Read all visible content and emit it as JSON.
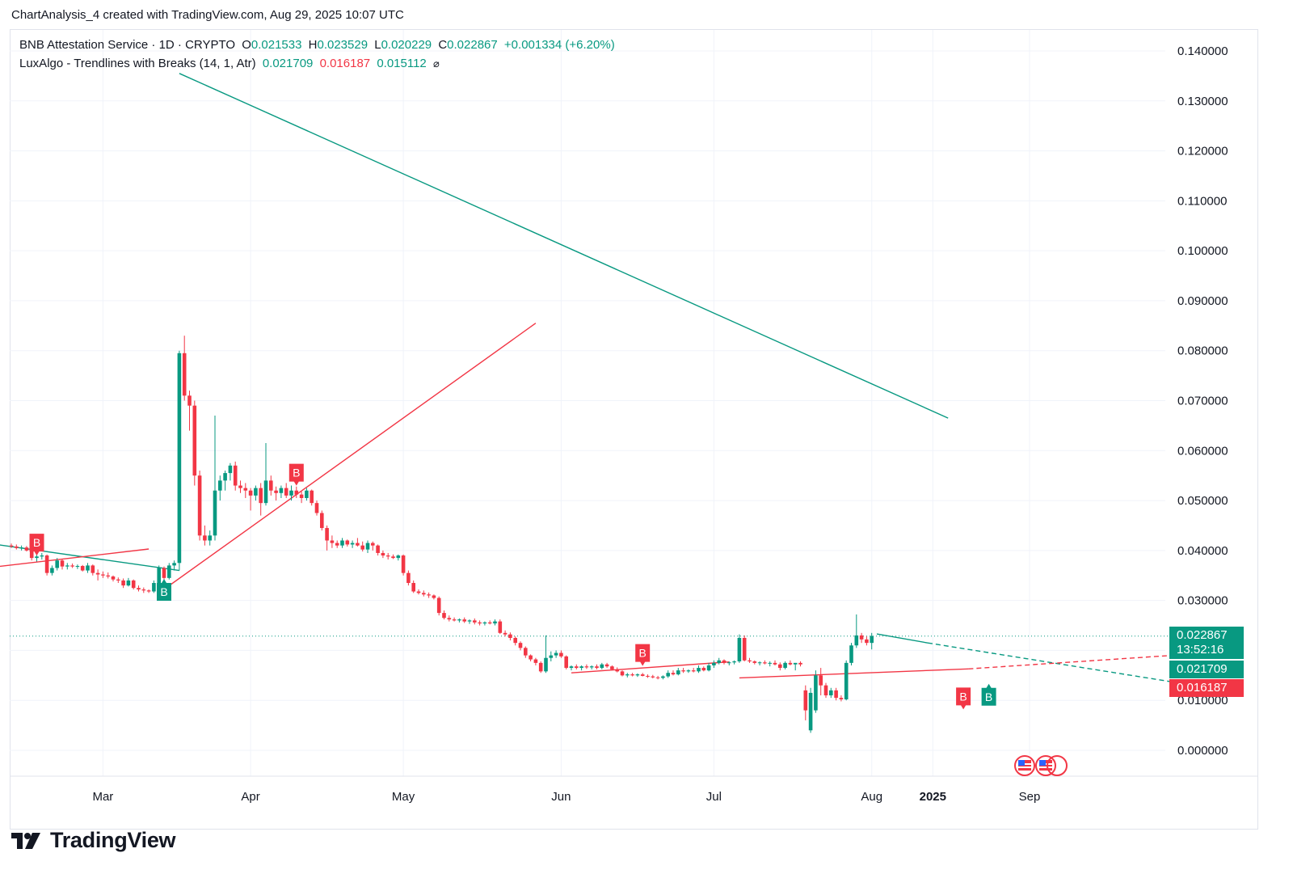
{
  "header": {
    "attribution": "ChartAnalysis_4 created with TradingView.com, Aug 29, 2025 10:07 UTC"
  },
  "legend": {
    "symbol": "BNB Attestation Service · 1D · CRYPTO",
    "o_label": "O",
    "o_value": "0.021533",
    "h_label": "H",
    "h_value": "0.023529",
    "l_label": "L",
    "l_value": "0.020229",
    "c_label": "C",
    "c_value": "0.022867",
    "change": "+0.001334 (+6.20%)",
    "indicator": "LuxAlgo - Trendlines with Breaks (14, 1, Atr)",
    "ind_v1": "0.021709",
    "ind_v2": "0.016187",
    "ind_v3": "0.015112",
    "ind_icon": "⌀"
  },
  "price_tags": {
    "last": "0.022867",
    "countdown": "13:52:16",
    "upper_trend": "0.021709",
    "lower_trend": "0.016187"
  },
  "brand": {
    "name": "TradingView"
  },
  "colors": {
    "up": "#089981",
    "down": "#f23645",
    "grid": "#f0f3fa",
    "axis_text": "#131722"
  },
  "chart_data": {
    "type": "candlestick",
    "title": "BNB Attestation Service · 1D · CRYPTO",
    "ylim": [
      -0.003,
      0.142
    ],
    "y_ticks": [
      "0.000000",
      "0.010000",
      "0.020000",
      "0.030000",
      "0.040000",
      "0.050000",
      "0.060000",
      "0.070000",
      "0.080000",
      "0.090000",
      "0.100000",
      "0.110000",
      "0.120000",
      "0.130000",
      "0.140000"
    ],
    "x_ticks": [
      {
        "label": "Mar",
        "day": 18,
        "bold": false
      },
      {
        "label": "Apr",
        "day": 47,
        "bold": false
      },
      {
        "label": "May",
        "day": 77,
        "bold": false
      },
      {
        "label": "Jun",
        "day": 108,
        "bold": false
      },
      {
        "label": "Jul",
        "day": 138,
        "bold": false
      },
      {
        "label": "Aug",
        "day": 169,
        "bold": false
      },
      {
        "label": "2025",
        "day": 181,
        "bold": true
      },
      {
        "label": "Sep",
        "day": 200,
        "bold": false
      }
    ],
    "candles": [
      [
        0.041,
        0.0414,
        0.0405,
        0.0408
      ],
      [
        0.0408,
        0.0412,
        0.0402,
        0.0405
      ],
      [
        0.0405,
        0.041,
        0.04,
        0.0406
      ],
      [
        0.0406,
        0.0409,
        0.0398,
        0.04
      ],
      [
        0.04,
        0.0402,
        0.038,
        0.0385
      ],
      [
        0.0385,
        0.0392,
        0.0378,
        0.0388
      ],
      [
        0.0388,
        0.0395,
        0.0382,
        0.039
      ],
      [
        0.039,
        0.0392,
        0.035,
        0.0355
      ],
      [
        0.0355,
        0.037,
        0.035,
        0.0365
      ],
      [
        0.0365,
        0.0385,
        0.036,
        0.038
      ],
      [
        0.038,
        0.0382,
        0.0362,
        0.0368
      ],
      [
        0.0368,
        0.0375,
        0.0362,
        0.037
      ],
      [
        0.037,
        0.0374,
        0.0365,
        0.0368
      ],
      [
        0.0368,
        0.0372,
        0.0363,
        0.0369
      ],
      [
        0.0369,
        0.0371,
        0.0358,
        0.036
      ],
      [
        0.036,
        0.0375,
        0.0355,
        0.037
      ],
      [
        0.037,
        0.0372,
        0.035,
        0.0355
      ],
      [
        0.0355,
        0.0362,
        0.034,
        0.0352
      ],
      [
        0.0352,
        0.0358,
        0.0345,
        0.035
      ],
      [
        0.035,
        0.0356,
        0.0344,
        0.0348
      ],
      [
        0.0348,
        0.035,
        0.0338,
        0.0342
      ],
      [
        0.0342,
        0.0346,
        0.0335,
        0.034
      ],
      [
        0.034,
        0.0344,
        0.0325,
        0.033
      ],
      [
        0.033,
        0.0345,
        0.0328,
        0.034
      ],
      [
        0.034,
        0.0342,
        0.0322,
        0.0325
      ],
      [
        0.0325,
        0.033,
        0.0318,
        0.0322
      ],
      [
        0.0322,
        0.0326,
        0.0315,
        0.032
      ],
      [
        0.032,
        0.0322,
        0.0315,
        0.0318
      ],
      [
        0.0318,
        0.034,
        0.0315,
        0.0335
      ],
      [
        0.0335,
        0.037,
        0.033,
        0.0365
      ],
      [
        0.0365,
        0.0368,
        0.034,
        0.0345
      ],
      [
        0.0345,
        0.0375,
        0.0342,
        0.037
      ],
      [
        0.037,
        0.038,
        0.036,
        0.0375
      ],
      [
        0.0375,
        0.08,
        0.036,
        0.0795
      ],
      [
        0.0795,
        0.083,
        0.07,
        0.071
      ],
      [
        0.071,
        0.072,
        0.064,
        0.069
      ],
      [
        0.069,
        0.07,
        0.053,
        0.055
      ],
      [
        0.055,
        0.056,
        0.042,
        0.043
      ],
      [
        0.043,
        0.045,
        0.041,
        0.042
      ],
      [
        0.042,
        0.044,
        0.041,
        0.043
      ],
      [
        0.043,
        0.067,
        0.042,
        0.052
      ],
      [
        0.052,
        0.055,
        0.05,
        0.054
      ],
      [
        0.054,
        0.056,
        0.052,
        0.0555
      ],
      [
        0.0555,
        0.0575,
        0.054,
        0.057
      ],
      [
        0.057,
        0.0578,
        0.052,
        0.053
      ],
      [
        0.053,
        0.054,
        0.0515,
        0.0525
      ],
      [
        0.0525,
        0.0535,
        0.0505,
        0.052
      ],
      [
        0.052,
        0.0525,
        0.048,
        0.051
      ],
      [
        0.051,
        0.053,
        0.05,
        0.0525
      ],
      [
        0.0525,
        0.0535,
        0.047,
        0.0495
      ],
      [
        0.0495,
        0.0615,
        0.049,
        0.054
      ],
      [
        0.054,
        0.055,
        0.051,
        0.052
      ],
      [
        0.052,
        0.0528,
        0.05,
        0.0515
      ],
      [
        0.0515,
        0.053,
        0.0505,
        0.0525
      ],
      [
        0.0525,
        0.0535,
        0.0505,
        0.051
      ],
      [
        0.051,
        0.053,
        0.05,
        0.052
      ],
      [
        0.052,
        0.0528,
        0.0505,
        0.0512
      ],
      [
        0.0512,
        0.0518,
        0.0495,
        0.0505
      ],
      [
        0.0505,
        0.0525,
        0.05,
        0.052
      ],
      [
        0.052,
        0.0522,
        0.049,
        0.0495
      ],
      [
        0.0495,
        0.05,
        0.047,
        0.0475
      ],
      [
        0.0475,
        0.048,
        0.044,
        0.0445
      ],
      [
        0.0445,
        0.045,
        0.04,
        0.042
      ],
      [
        0.042,
        0.043,
        0.0405,
        0.0415
      ],
      [
        0.0415,
        0.042,
        0.0405,
        0.041
      ],
      [
        0.041,
        0.0425,
        0.0405,
        0.042
      ],
      [
        0.042,
        0.0422,
        0.0408,
        0.0412
      ],
      [
        0.0412,
        0.042,
        0.0405,
        0.0415
      ],
      [
        0.0415,
        0.0425,
        0.0408,
        0.041
      ],
      [
        0.041,
        0.0418,
        0.0398,
        0.0402
      ],
      [
        0.0402,
        0.042,
        0.0395,
        0.0415
      ],
      [
        0.0415,
        0.0418,
        0.04,
        0.041
      ],
      [
        0.041,
        0.0412,
        0.039,
        0.0395
      ],
      [
        0.0395,
        0.04,
        0.0385,
        0.039
      ],
      [
        0.039,
        0.0395,
        0.0382,
        0.0388
      ],
      [
        0.0388,
        0.0392,
        0.0383,
        0.0385
      ],
      [
        0.0385,
        0.0392,
        0.038,
        0.039
      ],
      [
        0.039,
        0.0392,
        0.035,
        0.0355
      ],
      [
        0.0355,
        0.036,
        0.033,
        0.0335
      ],
      [
        0.0335,
        0.034,
        0.0315,
        0.0318
      ],
      [
        0.0318,
        0.0322,
        0.0312,
        0.0315
      ],
      [
        0.0315,
        0.032,
        0.0308,
        0.0312
      ],
      [
        0.0312,
        0.0316,
        0.0305,
        0.031
      ],
      [
        0.031,
        0.0312,
        0.0302,
        0.0305
      ],
      [
        0.0305,
        0.0308,
        0.027,
        0.0275
      ],
      [
        0.0275,
        0.028,
        0.0262,
        0.0265
      ],
      [
        0.0265,
        0.027,
        0.0258,
        0.0262
      ],
      [
        0.0262,
        0.0266,
        0.0258,
        0.026
      ],
      [
        0.026,
        0.0264,
        0.0256,
        0.0262
      ],
      [
        0.0262,
        0.0266,
        0.0255,
        0.0258
      ],
      [
        0.0258,
        0.0262,
        0.0253,
        0.026
      ],
      [
        0.026,
        0.0264,
        0.0252,
        0.0256
      ],
      [
        0.0256,
        0.026,
        0.025,
        0.0254
      ],
      [
        0.0254,
        0.0258,
        0.025,
        0.0256
      ],
      [
        0.0256,
        0.026,
        0.0252,
        0.0254
      ],
      [
        0.0254,
        0.0262,
        0.025,
        0.0258
      ],
      [
        0.0258,
        0.0262,
        0.0233,
        0.0235
      ],
      [
        0.0235,
        0.024,
        0.0228,
        0.0232
      ],
      [
        0.0232,
        0.0236,
        0.022,
        0.0225
      ],
      [
        0.0225,
        0.0228,
        0.021,
        0.0215
      ],
      [
        0.0215,
        0.0218,
        0.02,
        0.0205
      ],
      [
        0.0205,
        0.0208,
        0.0185,
        0.019
      ],
      [
        0.019,
        0.0192,
        0.0178,
        0.0182
      ],
      [
        0.0182,
        0.0185,
        0.017,
        0.0175
      ],
      [
        0.0175,
        0.0178,
        0.0155,
        0.0158
      ],
      [
        0.0158,
        0.023,
        0.0155,
        0.0185
      ],
      [
        0.0185,
        0.0198,
        0.0178,
        0.019
      ],
      [
        0.019,
        0.02,
        0.0185,
        0.0195
      ],
      [
        0.0195,
        0.02,
        0.0185,
        0.0188
      ],
      [
        0.0188,
        0.019,
        0.0162,
        0.0165
      ],
      [
        0.0165,
        0.017,
        0.016,
        0.0168
      ],
      [
        0.0168,
        0.0172,
        0.0162,
        0.0165
      ],
      [
        0.0165,
        0.017,
        0.016,
        0.0168
      ],
      [
        0.0168,
        0.0172,
        0.0163,
        0.0166
      ],
      [
        0.0166,
        0.017,
        0.0162,
        0.0168
      ],
      [
        0.0168,
        0.0172,
        0.0162,
        0.0165
      ],
      [
        0.0165,
        0.0175,
        0.0162,
        0.0172
      ],
      [
        0.0172,
        0.0175,
        0.0165,
        0.0168
      ],
      [
        0.0168,
        0.017,
        0.016,
        0.0162
      ],
      [
        0.0162,
        0.0166,
        0.0156,
        0.0158
      ],
      [
        0.0158,
        0.016,
        0.0148,
        0.015
      ],
      [
        0.015,
        0.0155,
        0.0146,
        0.0152
      ],
      [
        0.0152,
        0.0155,
        0.0148,
        0.015
      ],
      [
        0.015,
        0.0154,
        0.0147,
        0.0152
      ],
      [
        0.0152,
        0.0155,
        0.0148,
        0.0149
      ],
      [
        0.0149,
        0.0152,
        0.0145,
        0.0148
      ],
      [
        0.0148,
        0.0151,
        0.0144,
        0.0146
      ],
      [
        0.0146,
        0.0149,
        0.0142,
        0.0145
      ],
      [
        0.0145,
        0.015,
        0.0142,
        0.0148
      ],
      [
        0.0148,
        0.016,
        0.0145,
        0.0155
      ],
      [
        0.0155,
        0.016,
        0.015,
        0.0152
      ],
      [
        0.0152,
        0.0165,
        0.015,
        0.016
      ],
      [
        0.016,
        0.0165,
        0.0155,
        0.0158
      ],
      [
        0.0158,
        0.0162,
        0.0155,
        0.016
      ],
      [
        0.016,
        0.0165,
        0.0156,
        0.0158
      ],
      [
        0.0158,
        0.017,
        0.0155,
        0.0165
      ],
      [
        0.0165,
        0.0168,
        0.0158,
        0.016
      ],
      [
        0.016,
        0.0175,
        0.0158,
        0.017
      ],
      [
        0.017,
        0.018,
        0.0165,
        0.0175
      ],
      [
        0.0175,
        0.0185,
        0.0172,
        0.018
      ],
      [
        0.018,
        0.0182,
        0.0172,
        0.0175
      ],
      [
        0.0175,
        0.0178,
        0.017,
        0.0176
      ],
      [
        0.0176,
        0.018,
        0.0172,
        0.0178
      ],
      [
        0.0178,
        0.0232,
        0.0175,
        0.0225
      ],
      [
        0.0225,
        0.023,
        0.0178,
        0.018
      ],
      [
        0.018,
        0.0185,
        0.0175,
        0.0178
      ],
      [
        0.0178,
        0.018,
        0.0172,
        0.0175
      ],
      [
        0.0175,
        0.0178,
        0.017,
        0.0176
      ],
      [
        0.0176,
        0.018,
        0.0172,
        0.0174
      ],
      [
        0.0174,
        0.0178,
        0.0168,
        0.0175
      ],
      [
        0.0175,
        0.018,
        0.017,
        0.0172
      ],
      [
        0.0172,
        0.0176,
        0.016,
        0.0165
      ],
      [
        0.0165,
        0.0178,
        0.0162,
        0.0175
      ],
      [
        0.0175,
        0.018,
        0.017,
        0.0172
      ],
      [
        0.0172,
        0.0175,
        0.016,
        0.0175
      ],
      [
        0.0175,
        0.0178,
        0.0168,
        0.0172
      ],
      [
        0.012,
        0.013,
        0.006,
        0.008
      ],
      [
        0.004,
        0.0125,
        0.0035,
        0.0115
      ],
      [
        0.008,
        0.016,
        0.0075,
        0.015
      ],
      [
        0.015,
        0.0165,
        0.011,
        0.013
      ],
      [
        0.013,
        0.0135,
        0.0105,
        0.011
      ],
      [
        0.011,
        0.0125,
        0.0105,
        0.012
      ],
      [
        0.012,
        0.0125,
        0.01,
        0.0105
      ],
      [
        0.0105,
        0.011,
        0.0098,
        0.0102
      ],
      [
        0.0102,
        0.018,
        0.01,
        0.0175
      ],
      [
        0.0175,
        0.0215,
        0.017,
        0.021
      ],
      [
        0.021,
        0.0272,
        0.0205,
        0.023
      ],
      [
        0.023,
        0.0235,
        0.0215,
        0.0222
      ],
      [
        0.0222,
        0.0228,
        0.021,
        0.0215
      ],
      [
        0.0215,
        0.0235,
        0.0202,
        0.0229
      ]
    ],
    "trendlines": [
      {
        "name": "downtrend",
        "color": "down_green",
        "points": [
          [
            33,
            0.1355
          ],
          [
            184,
            0.0665
          ]
        ]
      },
      {
        "name": "rising support",
        "color": "red",
        "points": [
          [
            29,
            0.0315
          ],
          [
            103,
            0.0855
          ]
        ]
      },
      {
        "name": "early resistance",
        "color": "green",
        "points": [
          [
            -5,
            0.0415
          ],
          [
            33,
            0.036
          ]
        ]
      },
      {
        "name": "early support",
        "color": "red",
        "points": [
          [
            -5,
            0.0365
          ],
          [
            27,
            0.0403
          ]
        ]
      },
      {
        "name": "june support",
        "color": "red",
        "points": [
          [
            110,
            0.0155
          ],
          [
            141,
            0.0177
          ]
        ]
      },
      {
        "name": "july support",
        "color": "red",
        "points": [
          [
            143,
            0.0145
          ],
          [
            188,
            0.0163
          ]
        ]
      },
      {
        "name": "aug resistance",
        "color": "green",
        "points": [
          [
            170,
            0.0233
          ],
          [
            180,
            0.0215
          ]
        ]
      }
    ],
    "dashed_projections": [
      {
        "color": "green",
        "points": [
          [
            180,
            0.0215
          ],
          [
            228,
            0.0137
          ]
        ]
      },
      {
        "color": "red",
        "points": [
          [
            188,
            0.0163
          ],
          [
            228,
            0.019
          ]
        ]
      }
    ],
    "break_labels": [
      {
        "text": "B",
        "day": 5,
        "value": 0.0398,
        "type": "bearish"
      },
      {
        "text": "B",
        "day": 30,
        "value": 0.0335,
        "type": "bullish"
      },
      {
        "text": "B",
        "day": 56,
        "value": 0.0538,
        "type": "bearish"
      },
      {
        "text": "B",
        "day": 124,
        "value": 0.0177,
        "type": "bearish"
      },
      {
        "text": "B",
        "day": 187,
        "value": 0.009,
        "type": "bearish"
      },
      {
        "text": "B",
        "day": 192,
        "value": 0.0125,
        "type": "bullish"
      }
    ],
    "last_price": 0.022867
  }
}
